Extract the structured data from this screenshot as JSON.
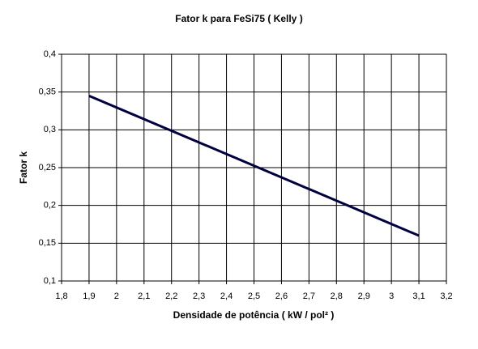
{
  "chart_data": {
    "type": "line",
    "title": "Fator k para FeSi75 ( Kelly )",
    "xlabel": "Densidade de potência ( kW / pol² )",
    "ylabel": "Fator k",
    "x": [
      1.9,
      3.1
    ],
    "series": [
      {
        "color": "#000040",
        "values": [
          0.345,
          0.16
        ]
      }
    ],
    "xlim": [
      1.8,
      3.2
    ],
    "xticks": [
      {
        "value": 1.8,
        "label": "1,8"
      },
      {
        "value": 1.9,
        "label": "1,9"
      },
      2,
      {
        "value": 2.1,
        "label": "2,1"
      },
      {
        "value": 2.2,
        "label": "2,2"
      },
      {
        "value": 2.3,
        "label": "2,3"
      },
      {
        "value": 2.4,
        "label": "2,4"
      },
      {
        "value": 2.5,
        "label": "2,5"
      },
      {
        "value": 2.6,
        "label": "2,6"
      },
      {
        "value": 2.7,
        "label": "2,7"
      },
      {
        "value": 2.8,
        "label": "2,8"
      },
      {
        "value": 2.9,
        "label": "2,9"
      },
      3,
      {
        "value": 3.1,
        "label": "3,1"
      },
      {
        "value": 3.2,
        "label": "3,2"
      }
    ],
    "ylim": [
      0.1,
      0.4
    ],
    "yticks": [
      {
        "value": 0.1,
        "label": "0,1"
      },
      {
        "value": 0.15,
        "label": "0,15"
      },
      {
        "value": 0.2,
        "label": "0,2"
      },
      {
        "value": 0.25,
        "label": "0,25"
      },
      {
        "value": 0.3,
        "label": "0,3"
      },
      {
        "value": 0.35,
        "label": "0,35"
      },
      {
        "value": 0.4,
        "label": "0,4"
      }
    ],
    "grid": true
  }
}
